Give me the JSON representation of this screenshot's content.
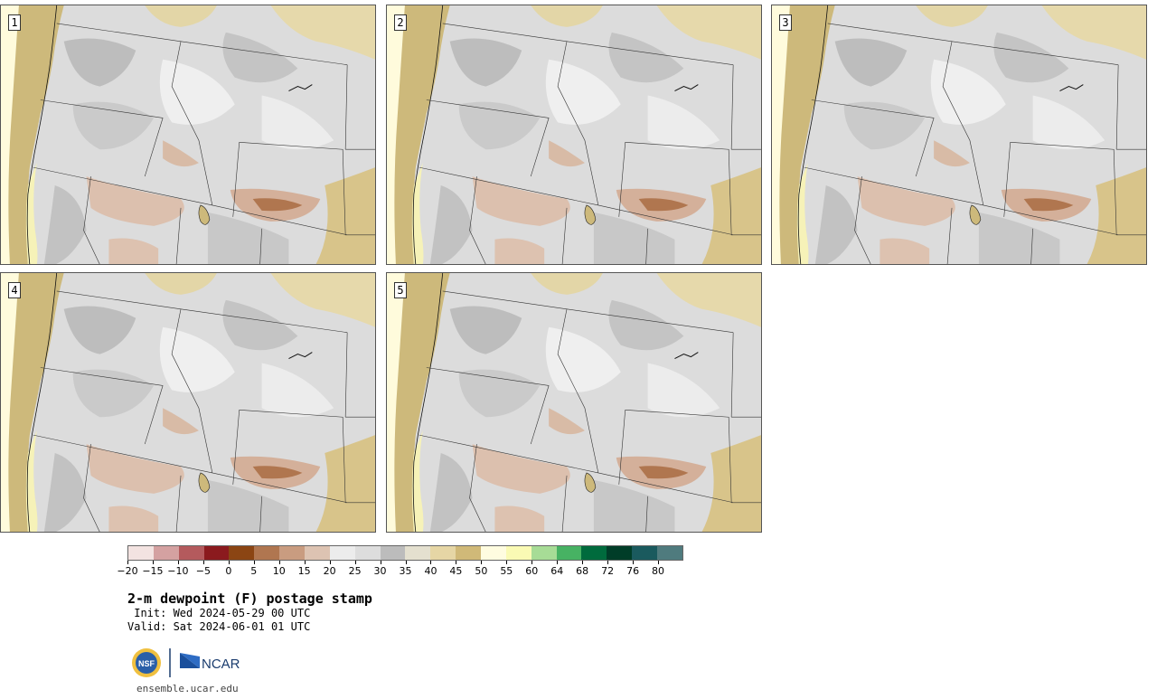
{
  "panels": [
    {
      "label": "1"
    },
    {
      "label": "2"
    },
    {
      "label": "3"
    },
    {
      "label": "4"
    },
    {
      "label": "5"
    }
  ],
  "legend": {
    "colors": [
      "#f3e3e1",
      "#d4a1a1",
      "#b45a5d",
      "#8b1a1e",
      "#8b4513",
      "#b07650",
      "#c99c80",
      "#ddc3b2",
      "#ececec",
      "#dddddd",
      "#bcbcbc",
      "#e4e0cf",
      "#e6d6a5",
      "#d0b978",
      "#fffce0",
      "#fafab4",
      "#a7dc96",
      "#47b263",
      "#006b3d",
      "#003d28",
      "#1a5a5e",
      "#4f7b7e"
    ],
    "ticks": [
      "−20",
      "−15",
      "−10",
      "−5",
      "0",
      "5",
      "10",
      "15",
      "20",
      "25",
      "30",
      "35",
      "40",
      "45",
      "50",
      "55",
      "60",
      "64",
      "68",
      "72",
      "76",
      "80"
    ]
  },
  "title": "2-m dewpoint (F) postage stamp",
  "init": " Init: Wed 2024-05-29 00 UTC",
  "valid": "Valid: Sat 2024-06-01 01 UTC",
  "logos": {
    "nsf": "NSF",
    "ncar": "NCAR"
  },
  "url": "ensemble.ucar.edu"
}
